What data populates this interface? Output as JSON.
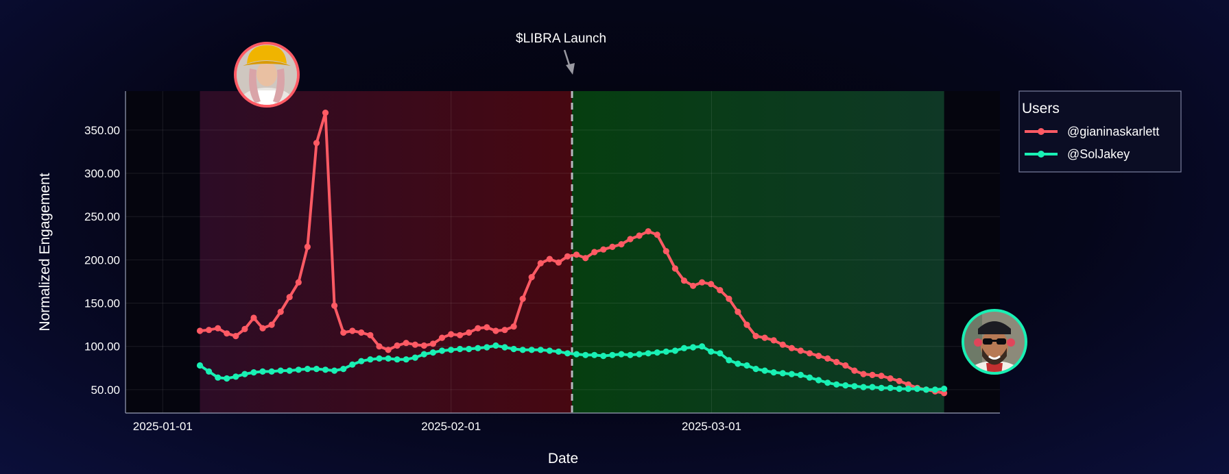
{
  "chart_data": {
    "type": "line",
    "xlabel": "Date",
    "ylabel": "Normalized Engagement",
    "x_range": [
      "2024-12-28",
      "2025-04-01"
    ],
    "ylim": [
      23,
      395
    ],
    "y_ticks": [
      50,
      100,
      150,
      200,
      250,
      300,
      350
    ],
    "y_tick_labels": [
      "50.00",
      "100.00",
      "150.00",
      "200.00",
      "250.00",
      "300.00",
      "350.00"
    ],
    "x_ticks": [
      "2025-01-01",
      "2025-02-01",
      "2025-03-01"
    ],
    "x_tick_labels": [
      "2025-01-01",
      "2025-02-01",
      "2025-03-01"
    ],
    "grid": true,
    "legend": {
      "title": "Users",
      "position": "top-right"
    },
    "shaded_regions": [
      {
        "from": "2025-01-05",
        "to": "2025-02-14",
        "color": "#3a0c1c"
      },
      {
        "from": "2025-02-14",
        "to": "2025-03-26",
        "color": "#0b3a1e"
      }
    ],
    "annotation": {
      "text": "$LIBRA Launch",
      "x": "2025-02-14"
    },
    "start_date": "2025-01-05",
    "series": [
      {
        "name": "@gianinaskarlett",
        "color": "#ff5a64",
        "values": [
          118,
          119,
          121,
          115,
          112,
          120,
          133,
          121,
          125,
          140,
          157,
          174,
          215,
          335,
          370,
          147,
          116,
          118,
          116,
          113,
          100,
          96,
          101,
          104,
          102,
          101,
          103,
          110,
          114,
          113,
          116,
          121,
          122,
          118,
          119,
          123,
          155,
          180,
          196,
          201,
          197,
          204,
          206,
          202,
          209,
          212,
          215,
          218,
          224,
          228,
          233,
          229,
          210,
          190,
          176,
          170,
          174,
          172,
          165,
          155,
          140,
          125,
          112,
          110,
          107,
          102,
          98,
          95,
          92,
          89,
          86,
          82,
          78,
          72,
          68,
          67,
          66,
          63,
          60,
          56,
          52,
          50,
          48,
          46
        ]
      },
      {
        "name": "@SolJakey",
        "color": "#19f0b4",
        "values": [
          78,
          71,
          64,
          63,
          65,
          68,
          70,
          71,
          71,
          72,
          72,
          73,
          74,
          74,
          73,
          72,
          74,
          79,
          83,
          85,
          86,
          86,
          85,
          85,
          87,
          91,
          93,
          95,
          96,
          97,
          97,
          98,
          99,
          101,
          99,
          97,
          96,
          96,
          96,
          95,
          94,
          92,
          91,
          90,
          90,
          89,
          90,
          91,
          90,
          91,
          92,
          93,
          94,
          95,
          98,
          99,
          100,
          94,
          92,
          84,
          80,
          78,
          74,
          72,
          70,
          69,
          68,
          67,
          64,
          61,
          58,
          56,
          55,
          54,
          53,
          53,
          52,
          52,
          51,
          51,
          51,
          50,
          50,
          51
        ]
      }
    ]
  },
  "avatars": [
    {
      "name": "gianinaskarlett-avatar",
      "border_color": "#ff5a64"
    },
    {
      "name": "soljakey-avatar",
      "border_color": "#19f0b4"
    }
  ]
}
